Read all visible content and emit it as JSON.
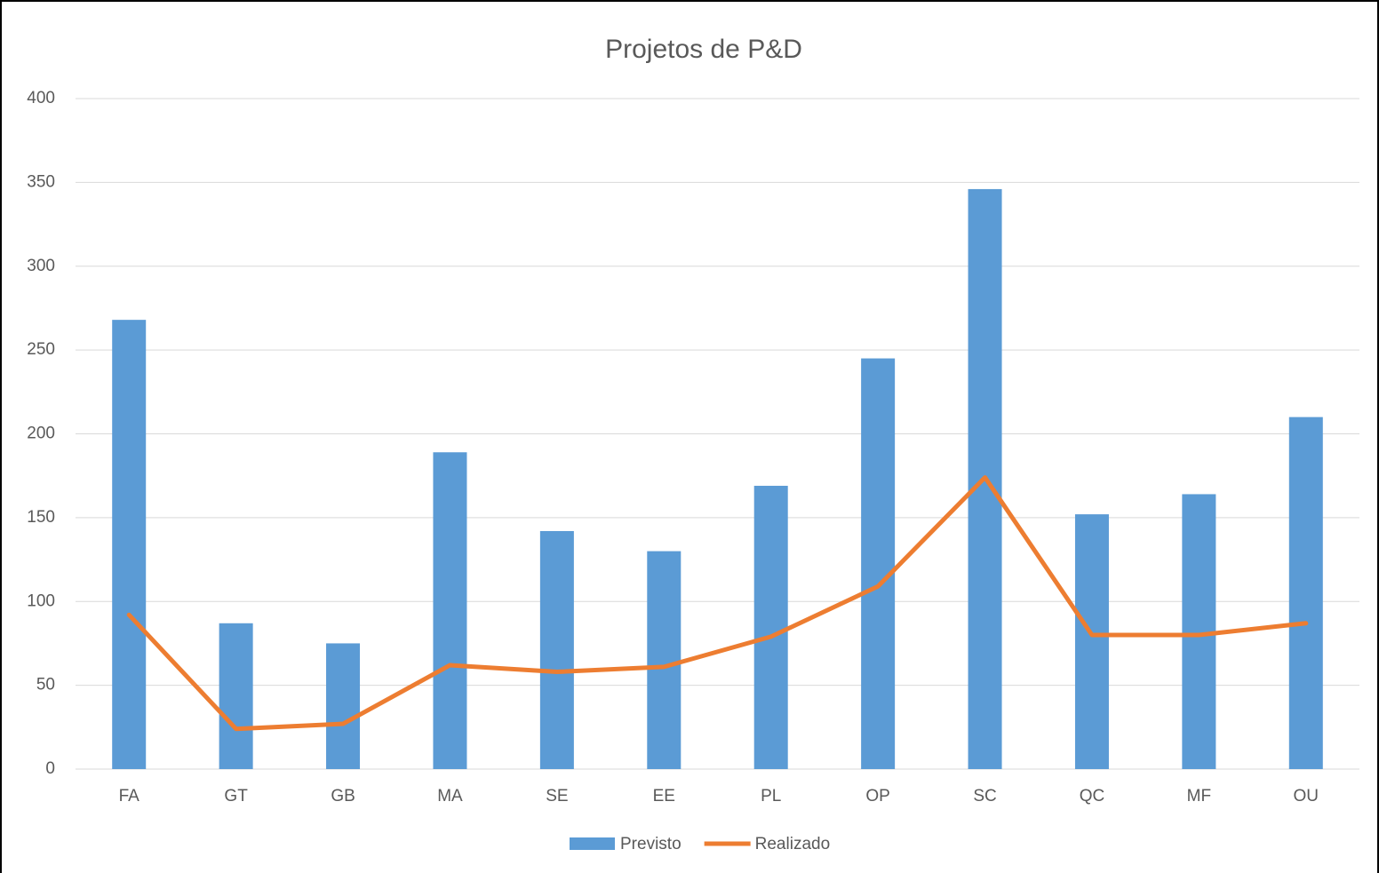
{
  "chart_data": {
    "type": "combo",
    "title": "Projetos de P&D",
    "categories": [
      "FA",
      "GT",
      "GB",
      "MA",
      "SE",
      "EE",
      "PL",
      "OP",
      "SC",
      "QC",
      "MF",
      "OU"
    ],
    "series": [
      {
        "name": "Previsto",
        "type": "bar",
        "color": "#5b9bd5",
        "values": [
          268,
          87,
          75,
          189,
          142,
          130,
          169,
          245,
          346,
          152,
          164,
          210
        ]
      },
      {
        "name": "Realizado",
        "type": "line",
        "color": "#ed7d31",
        "values": [
          92,
          24,
          27,
          62,
          58,
          61,
          79,
          109,
          174,
          80,
          80,
          87
        ]
      }
    ],
    "ylim": [
      0,
      400
    ],
    "yticks": [
      0,
      50,
      100,
      150,
      200,
      250,
      300,
      350,
      400
    ],
    "grid": true,
    "legend": "bottom"
  }
}
